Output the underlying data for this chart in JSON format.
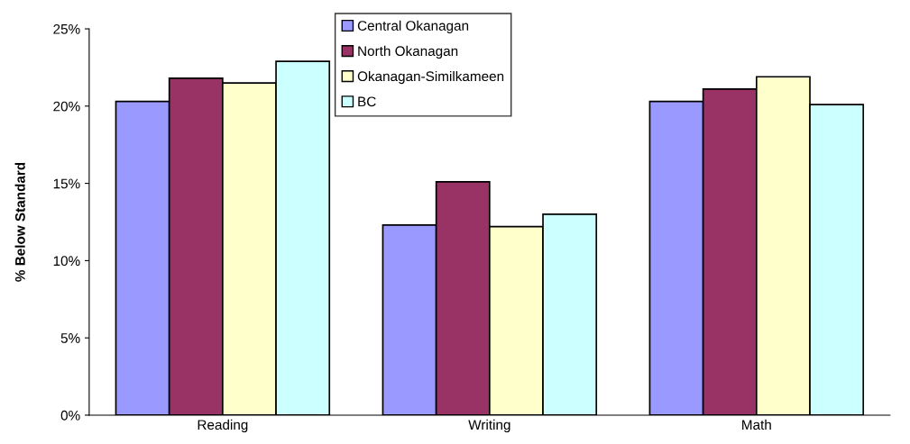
{
  "chart_data": {
    "type": "bar",
    "ylabel": "% Below Standard",
    "categories": [
      "Reading",
      "Writing",
      "Math"
    ],
    "series": [
      {
        "name": "Central Okanagan",
        "color": "#9999ff",
        "values": [
          20.3,
          12.3,
          20.3
        ]
      },
      {
        "name": "North Okanagan",
        "color": "#993366",
        "values": [
          21.8,
          15.1,
          21.1
        ]
      },
      {
        "name": "Okanagan-Similkameen",
        "color": "#ffffcc",
        "values": [
          21.5,
          12.2,
          21.9
        ]
      },
      {
        "name": "BC",
        "color": "#ccffff",
        "values": [
          22.9,
          13.0,
          20.1
        ]
      }
    ],
    "ylim": [
      0,
      25
    ],
    "yticks": [
      {
        "value": 0,
        "label": "0%"
      },
      {
        "value": 5,
        "label": "5%"
      },
      {
        "value": 10,
        "label": "10%"
      },
      {
        "value": 15,
        "label": "15%"
      },
      {
        "value": 20,
        "label": "20%"
      },
      {
        "value": 25,
        "label": "25%"
      }
    ],
    "grid": false,
    "legend": "top"
  }
}
